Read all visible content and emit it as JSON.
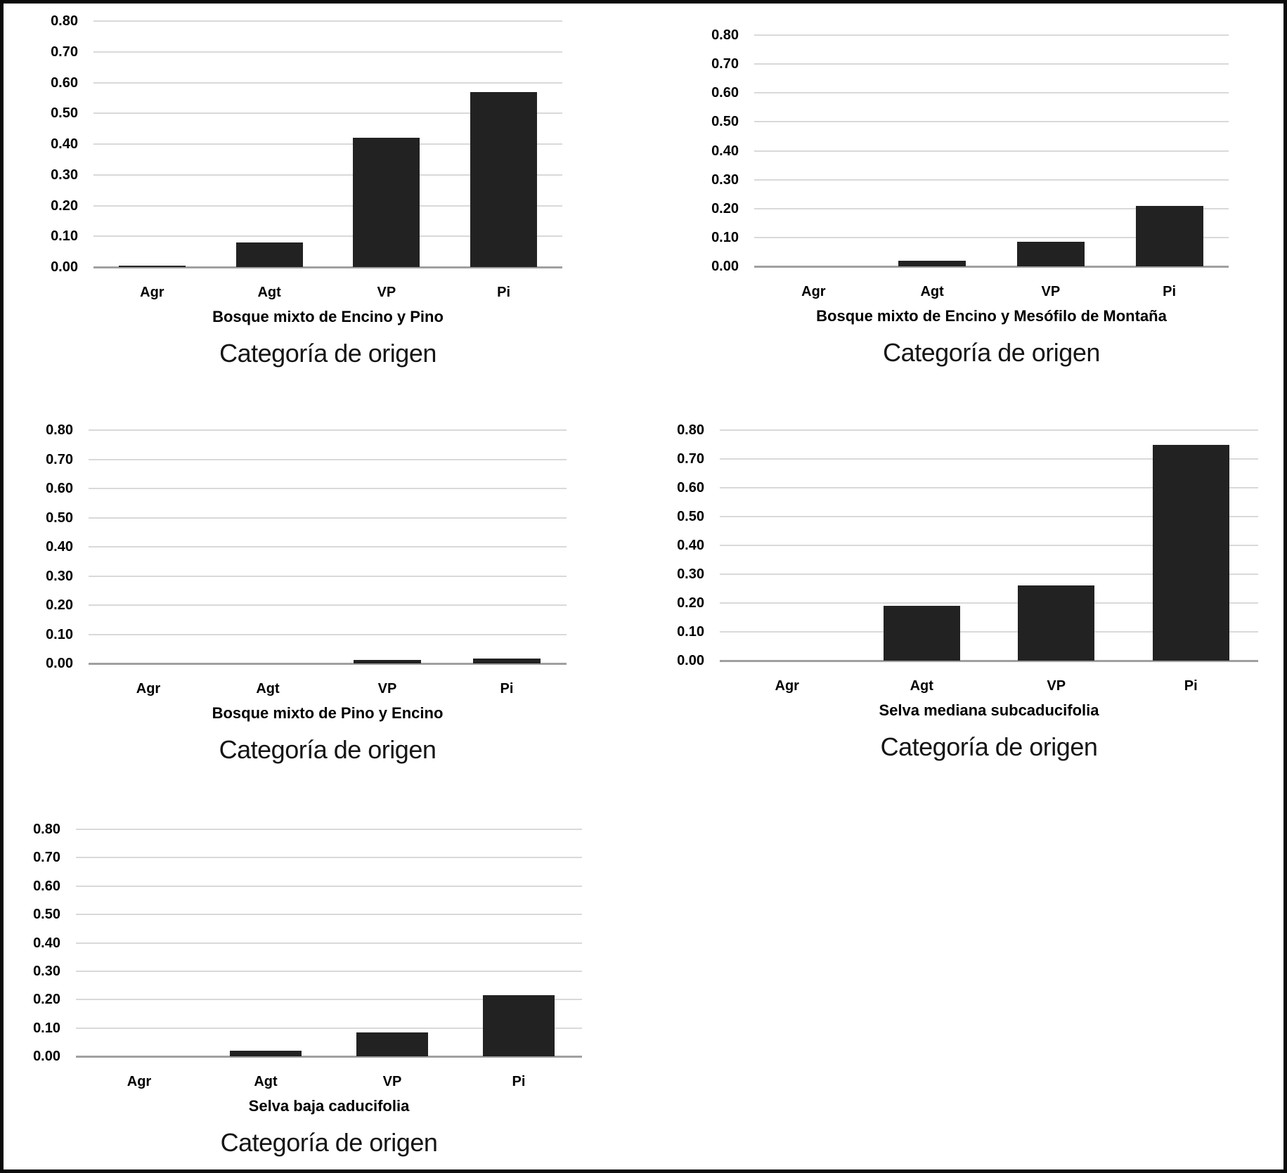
{
  "figure": {
    "background": "#ffffff",
    "colors": {
      "bar": "#222222",
      "gridline": "#d9d9d9",
      "baseline": "#a0a0a0",
      "frame": "#0b0b0b",
      "text": "#000000"
    }
  },
  "chart_data": [
    {
      "type": "bar",
      "title": "Bosque mixto de Encino y Pino",
      "xlabel": "Categoría de origen",
      "categories": [
        "Agr",
        "Agt",
        "VP",
        "Pi"
      ],
      "values": [
        0.005,
        0.08,
        0.42,
        0.57
      ],
      "ylim": [
        0,
        0.8
      ],
      "yticks": [
        "0.00",
        "0.10",
        "0.20",
        "0.30",
        "0.40",
        "0.50",
        "0.60",
        "0.70",
        "0.80"
      ],
      "grid": true,
      "legend": false
    },
    {
      "type": "bar",
      "title": "Bosque mixto de Encino y Mesófilo de Montaña",
      "xlabel": "Categoría de origen",
      "categories": [
        "Agr",
        "Agt",
        "VP",
        "Pi"
      ],
      "values": [
        0,
        0.02,
        0.085,
        0.21
      ],
      "ylim": [
        0,
        0.8
      ],
      "yticks": [
        "0.00",
        "0.10",
        "0.20",
        "0.30",
        "0.40",
        "0.50",
        "0.60",
        "0.70",
        "0.80"
      ],
      "grid": true,
      "legend": false
    },
    {
      "type": "bar",
      "title": "Bosque mixto de Pino y Encino",
      "xlabel": "Categoría de origen",
      "categories": [
        "Agr",
        "Agt",
        "VP",
        "Pi"
      ],
      "values": [
        0,
        0,
        0.012,
        0.016
      ],
      "ylim": [
        0,
        0.8
      ],
      "yticks": [
        "0.00",
        "0.10",
        "0.20",
        "0.30",
        "0.40",
        "0.50",
        "0.60",
        "0.70",
        "0.80"
      ],
      "grid": true,
      "legend": false
    },
    {
      "type": "bar",
      "title": "Selva mediana subcaducifolia",
      "xlabel": "Categoría de origen",
      "categories": [
        "Agr",
        "Agt",
        "VP",
        "Pi"
      ],
      "values": [
        0,
        0.19,
        0.26,
        0.75
      ],
      "ylim": [
        0,
        0.8
      ],
      "yticks": [
        "0.00",
        "0.10",
        "0.20",
        "0.30",
        "0.40",
        "0.50",
        "0.60",
        "0.70",
        "0.80"
      ],
      "grid": true,
      "legend": false
    },
    {
      "type": "bar",
      "title": "Selva baja caducifolia",
      "xlabel": "Categoría de origen",
      "categories": [
        "Agr",
        "Agt",
        "VP",
        "Pi"
      ],
      "values": [
        0,
        0.02,
        0.085,
        0.215
      ],
      "ylim": [
        0,
        0.8
      ],
      "yticks": [
        "0.00",
        "0.10",
        "0.20",
        "0.30",
        "0.40",
        "0.50",
        "0.60",
        "0.70",
        "0.80"
      ],
      "grid": true,
      "legend": false
    }
  ]
}
